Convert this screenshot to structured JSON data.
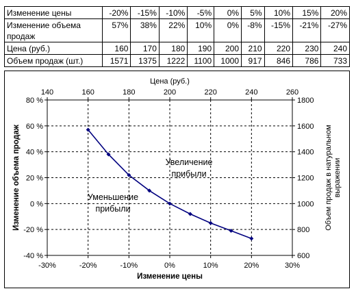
{
  "table": {
    "rows": [
      {
        "label": "Изменение цены",
        "values": [
          "-20%",
          "-15%",
          "-10%",
          "-5%",
          "0%",
          "5%",
          "10%",
          "15%",
          "20%"
        ]
      },
      {
        "label": "Изменение объема продаж",
        "values": [
          "57%",
          "38%",
          "22%",
          "10%",
          "0%",
          "-8%",
          "-15%",
          "-21%",
          "-27%"
        ]
      },
      {
        "label": "Цена (руб.)",
        "values": [
          "160",
          "170",
          "180",
          "190",
          "200",
          "210",
          "220",
          "230",
          "240"
        ]
      },
      {
        "label": "Объем продаж (шт.)",
        "values": [
          "1571",
          "1375",
          "1222",
          "1100",
          "1000",
          "917",
          "846",
          "786",
          "733"
        ]
      }
    ]
  },
  "chart_data": {
    "type": "scatter",
    "title": "",
    "xlabel": "Изменение цены",
    "ylabel": "Изменение объема продаж",
    "x2label": "Цена (руб.)",
    "y2label": "Объем продаж в натуральном выражении",
    "xlim": [
      -30,
      30
    ],
    "ylim": [
      -40,
      80
    ],
    "x2lim": [
      140,
      260
    ],
    "y2lim": [
      600,
      1800
    ],
    "x_ticks": [
      "-30%",
      "-20%",
      "-10%",
      "0%",
      "10%",
      "20%",
      "30%"
    ],
    "y_ticks": [
      "-40 %",
      "-20 %",
      "0 %",
      "20 %",
      "40 %",
      "60 %",
      "80 %"
    ],
    "x2_ticks": [
      "140",
      "160",
      "180",
      "200",
      "220",
      "240",
      "260"
    ],
    "y2_ticks": [
      "600",
      "800",
      "1000",
      "1200",
      "1400",
      "1600",
      "1800"
    ],
    "grid": "dashed",
    "series": [
      {
        "x": [
          -20,
          -15,
          -10,
          -5,
          0,
          5,
          10,
          15,
          20
        ],
        "y": [
          57,
          38,
          22,
          10,
          0,
          -8,
          -15,
          -21,
          -27
        ],
        "color": "#00007f"
      }
    ],
    "annotations": [
      {
        "line1": "Увеличение",
        "line2": "прибыли"
      },
      {
        "line1": "Уменьшение",
        "line2": "прибыли"
      }
    ]
  }
}
